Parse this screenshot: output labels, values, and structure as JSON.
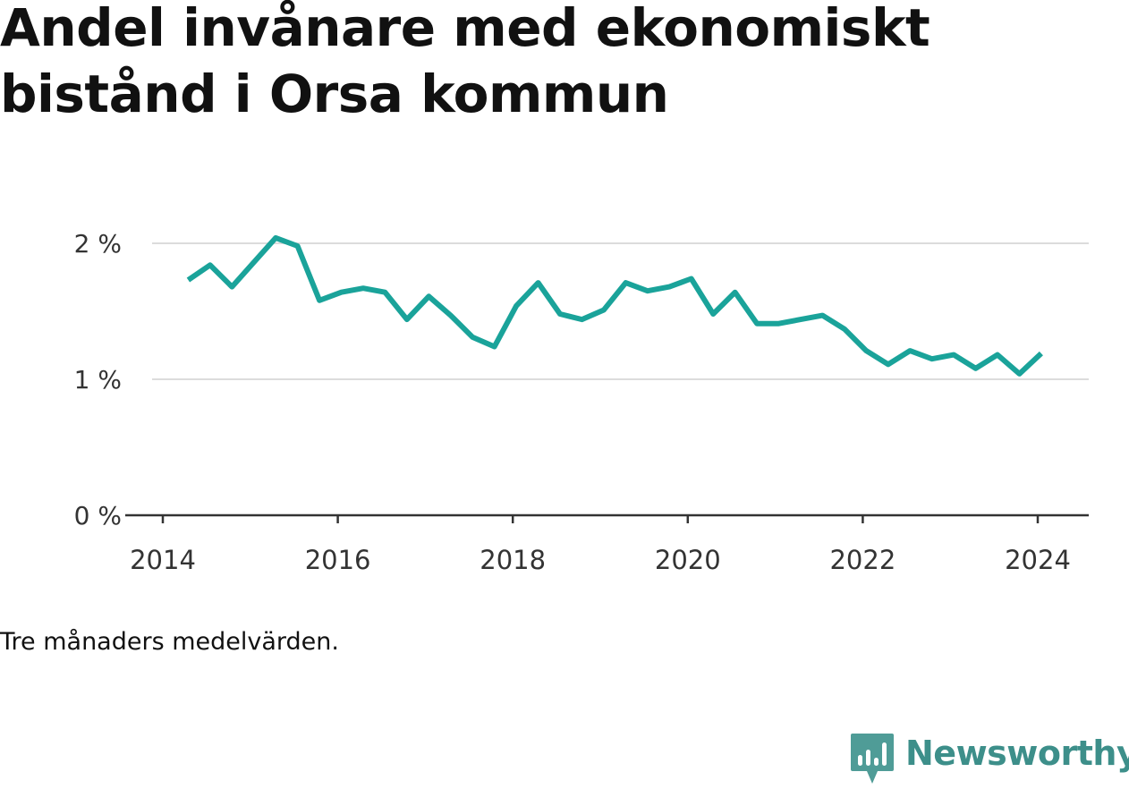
{
  "chart_data": {
    "type": "line",
    "title": "Andel invånare med ekonomiskt bistånd i Orsa kommun",
    "note": "Tre månaders medelvärden.",
    "y_ticks": [
      "0 %",
      "1 %",
      "2 %"
    ],
    "x_ticks": [
      "2014",
      "2016",
      "2018",
      "2020",
      "2022",
      "2024"
    ],
    "ylim": [
      0,
      2.0
    ],
    "xlim": [
      2013.95,
      2024.6
    ],
    "grid": true,
    "color": "#1aa39a",
    "series": [
      {
        "x": [
          2014.29,
          2014.54,
          2014.79,
          2015.04,
          2015.29,
          2015.54,
          2015.79,
          2016.04,
          2016.29,
          2016.54,
          2016.79,
          2017.04,
          2017.29,
          2017.54,
          2017.79,
          2018.04,
          2018.29,
          2018.54,
          2018.79,
          2019.04,
          2019.29,
          2019.54,
          2019.79,
          2020.04,
          2020.29,
          2020.54,
          2020.79,
          2021.04,
          2021.29,
          2021.54,
          2021.79,
          2022.04,
          2022.29,
          2022.54,
          2022.79,
          2023.04,
          2023.29,
          2023.54,
          2023.79,
          2024.04
        ],
        "y": [
          1.73,
          1.84,
          1.68,
          1.86,
          2.04,
          1.98,
          1.58,
          1.64,
          1.67,
          1.64,
          1.44,
          1.61,
          1.47,
          1.31,
          1.24,
          1.54,
          1.71,
          1.48,
          1.44,
          1.51,
          1.71,
          1.65,
          1.68,
          1.74,
          1.48,
          1.64,
          1.41,
          1.41,
          1.44,
          1.47,
          1.37,
          1.21,
          1.11,
          1.21,
          1.15,
          1.18,
          1.08,
          1.18,
          1.04,
          1.19
        ]
      }
    ]
  },
  "brand": {
    "name": "Newsworthy",
    "color": "#3d8f8a"
  }
}
